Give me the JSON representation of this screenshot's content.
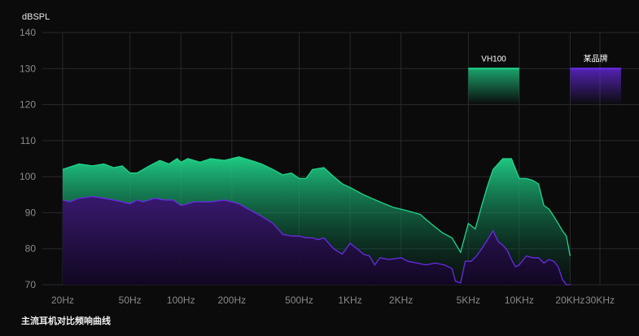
{
  "chart_data": {
    "type": "area",
    "unit_label": "dBSPL",
    "caption": "主流耳机对比频响曲线",
    "x_scale": "log",
    "ylim": [
      70,
      140
    ],
    "grid": true,
    "y_ticks": [
      70,
      80,
      90,
      100,
      110,
      120,
      130,
      140
    ],
    "x_ticks": [
      {
        "hz": 20,
        "label": "20Hz"
      },
      {
        "hz": 50,
        "label": "50Hz"
      },
      {
        "hz": 100,
        "label": "100Hz"
      },
      {
        "hz": 200,
        "label": "200Hz"
      },
      {
        "hz": 500,
        "label": "500Hz"
      },
      {
        "hz": 1000,
        "label": "1KHz"
      },
      {
        "hz": 2000,
        "label": "2KHz"
      },
      {
        "hz": 5000,
        "label": "5KHz"
      },
      {
        "hz": 10000,
        "label": "10KHz"
      },
      {
        "hz": 20000,
        "label": "20KHz"
      },
      {
        "hz": 30000,
        "label": "30KHz"
      }
    ],
    "series": [
      {
        "name": "VH100",
        "color": "#1fd58a",
        "legend_level": 130,
        "legend_band_hz": [
          5000,
          10000
        ],
        "points": [
          [
            20,
            102
          ],
          [
            25,
            103.5
          ],
          [
            30,
            103
          ],
          [
            35,
            103.5
          ],
          [
            40,
            102.5
          ],
          [
            45,
            103
          ],
          [
            50,
            101
          ],
          [
            55,
            101
          ],
          [
            65,
            103
          ],
          [
            75,
            104.5
          ],
          [
            85,
            103.5
          ],
          [
            95,
            105
          ],
          [
            100,
            104
          ],
          [
            110,
            105
          ],
          [
            130,
            104
          ],
          [
            150,
            105
          ],
          [
            180,
            104.5
          ],
          [
            220,
            105.5
          ],
          [
            260,
            104.5
          ],
          [
            300,
            103.5
          ],
          [
            350,
            102
          ],
          [
            400,
            100.5
          ],
          [
            450,
            101
          ],
          [
            500,
            99.5
          ],
          [
            550,
            99.5
          ],
          [
            600,
            102
          ],
          [
            700,
            102.5
          ],
          [
            800,
            100
          ],
          [
            900,
            98
          ],
          [
            1000,
            97
          ],
          [
            1200,
            95
          ],
          [
            1500,
            93
          ],
          [
            1800,
            91.5
          ],
          [
            2200,
            90.5
          ],
          [
            2600,
            89.5
          ],
          [
            3000,
            87
          ],
          [
            3500,
            84.5
          ],
          [
            4000,
            83
          ],
          [
            4500,
            79
          ],
          [
            5000,
            87
          ],
          [
            5500,
            85.5
          ],
          [
            6000,
            92
          ],
          [
            6500,
            97.5
          ],
          [
            7000,
            102
          ],
          [
            8000,
            105
          ],
          [
            9000,
            105
          ],
          [
            10000,
            99.5
          ],
          [
            11000,
            99.5
          ],
          [
            12000,
            99
          ],
          [
            13000,
            98
          ],
          [
            14000,
            92
          ],
          [
            15000,
            91
          ],
          [
            16000,
            89
          ],
          [
            17000,
            87
          ],
          [
            18000,
            85
          ],
          [
            19000,
            83.5
          ],
          [
            20000,
            78
          ]
        ]
      },
      {
        "name": "某品牌",
        "color": "#6a2ae8",
        "legend_level": 130,
        "legend_band_hz": [
          20000,
          40000
        ],
        "points": [
          [
            20,
            93.5
          ],
          [
            22,
            93
          ],
          [
            25,
            94
          ],
          [
            30,
            94.5
          ],
          [
            35,
            94
          ],
          [
            40,
            93.5
          ],
          [
            45,
            93
          ],
          [
            50,
            92.5
          ],
          [
            55,
            93.5
          ],
          [
            60,
            93
          ],
          [
            70,
            94
          ],
          [
            80,
            93.5
          ],
          [
            90,
            93.5
          ],
          [
            100,
            92
          ],
          [
            110,
            92.5
          ],
          [
            120,
            93
          ],
          [
            150,
            93
          ],
          [
            180,
            93.5
          ],
          [
            200,
            93
          ],
          [
            220,
            92.5
          ],
          [
            250,
            91
          ],
          [
            300,
            89
          ],
          [
            350,
            87
          ],
          [
            400,
            84
          ],
          [
            450,
            83.5
          ],
          [
            500,
            83.5
          ],
          [
            550,
            83
          ],
          [
            600,
            83
          ],
          [
            650,
            82.5
          ],
          [
            700,
            83
          ],
          [
            800,
            80
          ],
          [
            900,
            78.5
          ],
          [
            1000,
            81.5
          ],
          [
            1100,
            80
          ],
          [
            1200,
            78.5
          ],
          [
            1300,
            78
          ],
          [
            1400,
            75.5
          ],
          [
            1500,
            77.5
          ],
          [
            1700,
            77
          ],
          [
            2000,
            77.5
          ],
          [
            2200,
            76.5
          ],
          [
            2500,
            76
          ],
          [
            2800,
            75.5
          ],
          [
            3200,
            76
          ],
          [
            3600,
            75.5
          ],
          [
            4000,
            74.5
          ],
          [
            4200,
            71
          ],
          [
            4500,
            70.5
          ],
          [
            4800,
            76.5
          ],
          [
            5200,
            76.5
          ],
          [
            5600,
            78
          ],
          [
            6000,
            80
          ],
          [
            6500,
            82.5
          ],
          [
            7000,
            85
          ],
          [
            7500,
            82
          ],
          [
            8000,
            81
          ],
          [
            8500,
            79.5
          ],
          [
            9000,
            77
          ],
          [
            9500,
            75
          ],
          [
            10000,
            75.5
          ],
          [
            11000,
            78
          ],
          [
            12000,
            77.5
          ],
          [
            13000,
            77.5
          ],
          [
            14000,
            76
          ],
          [
            15000,
            77
          ],
          [
            16000,
            76.5
          ],
          [
            17000,
            75
          ],
          [
            18000,
            71.5
          ],
          [
            19000,
            70
          ],
          [
            20000,
            70
          ]
        ]
      }
    ]
  }
}
